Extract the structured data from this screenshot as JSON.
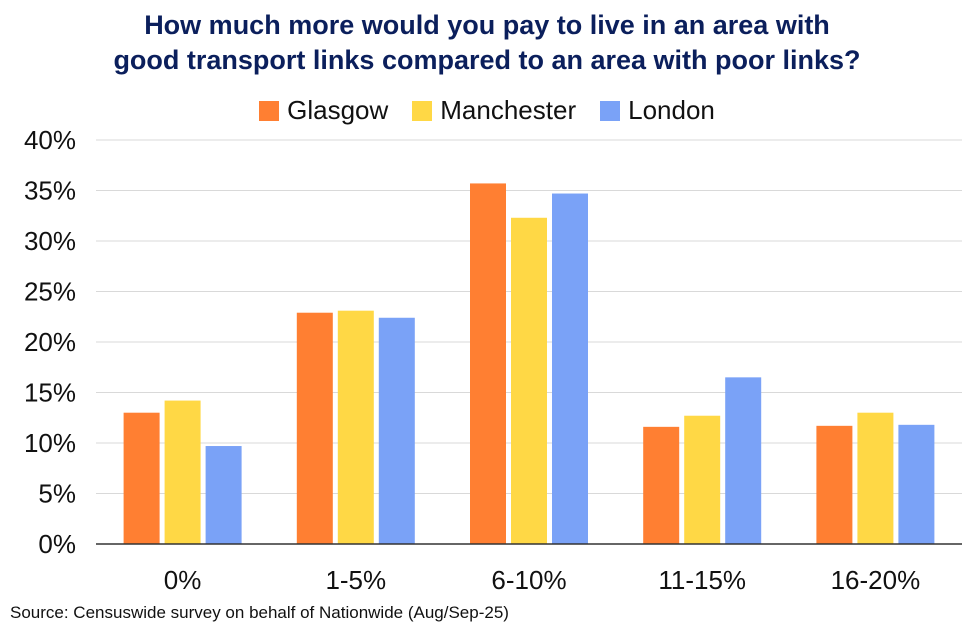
{
  "title_line1": "How much more would you pay to live in an area with",
  "title_line2": "good transport links compared to an area with poor links?",
  "source": "Source: Censuswide survey on behalf of Nationwide (Aug/Sep-25)",
  "colors": {
    "Glasgow": "#ff7f32",
    "Manchester": "#ffd845",
    "London": "#7aa2f7",
    "grid": "#d9d9d9",
    "axis": "#333333"
  },
  "chart_data": {
    "type": "bar",
    "title": "How much more would you pay to live in an area with good transport links compared to an area with poor links?",
    "categories": [
      "0%",
      "1-5%",
      "6-10%",
      "11-15%",
      "16-20%"
    ],
    "series": [
      {
        "name": "Glasgow",
        "values": [
          13.0,
          22.9,
          35.7,
          11.6,
          11.7
        ]
      },
      {
        "name": "Manchester",
        "values": [
          14.2,
          23.1,
          32.3,
          12.7,
          13.0
        ]
      },
      {
        "name": "London",
        "values": [
          9.7,
          22.4,
          34.7,
          16.5,
          11.8
        ]
      }
    ],
    "ylim": [
      0,
      40
    ],
    "yticks": [
      "0%",
      "5%",
      "10%",
      "15%",
      "20%",
      "25%",
      "30%",
      "35%",
      "40%"
    ],
    "ytick_values": [
      0,
      5,
      10,
      15,
      20,
      25,
      30,
      35,
      40
    ],
    "grid": true,
    "legend_position": "top"
  }
}
